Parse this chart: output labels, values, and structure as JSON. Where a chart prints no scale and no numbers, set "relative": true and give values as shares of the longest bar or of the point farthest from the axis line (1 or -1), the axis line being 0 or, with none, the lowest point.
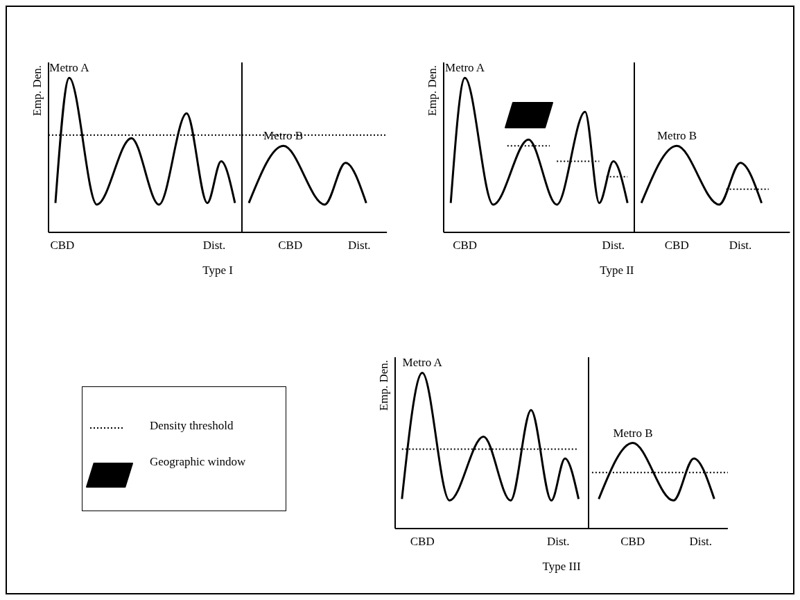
{
  "chart_data": [
    {
      "type": "line",
      "relative": true,
      "ylabel": "Emp. Den.",
      "marker": "none",
      "annotations": [
        "Type I"
      ],
      "categories": [
        null,
        null,
        "CBD",
        null,
        null,
        null,
        null,
        null,
        null,
        null,
        null,
        null,
        null,
        null,
        null,
        null,
        null,
        null,
        null,
        null,
        null,
        null,
        null,
        null,
        "Dist.",
        null,
        null,
        null,
        null,
        null,
        null,
        null,
        null,
        null,
        null,
        "CBD",
        null,
        null,
        null,
        null,
        null,
        null,
        null,
        null,
        null,
        "Dist.",
        null,
        null,
        null,
        null
      ],
      "series": [
        {
          "name": "Metro A",
          "color": "#000000",
          "values": [
            null,
            0.19,
            null,
            1.0,
            null,
            null,
            null,
            0.18,
            null,
            null,
            null,
            null,
            0.61,
            null,
            null,
            null,
            0.18,
            null,
            null,
            null,
            0.77,
            null,
            null,
            0.19,
            null,
            0.46,
            null,
            0.19,
            null,
            null,
            null,
            null,
            null,
            null,
            null,
            null,
            null,
            null,
            null,
            null,
            null,
            null,
            null,
            null,
            null,
            null,
            null,
            null,
            null,
            null
          ]
        },
        {
          "name": "Metro B",
          "color": "#000000",
          "values": [
            null,
            null,
            null,
            null,
            null,
            null,
            null,
            null,
            null,
            null,
            null,
            null,
            null,
            null,
            null,
            null,
            null,
            null,
            null,
            null,
            null,
            null,
            null,
            null,
            null,
            null,
            null,
            null,
            null,
            0.19,
            null,
            null,
            null,
            null,
            0.56,
            null,
            null,
            null,
            null,
            null,
            0.18,
            null,
            null,
            0.45,
            null,
            null,
            0.19,
            null,
            null,
            null
          ]
        }
      ],
      "ref_lines": [
        {
          "axis": "y",
          "value": 0.63,
          "color": "#000000",
          "line_style": "dotted"
        }
      ]
    },
    {
      "type": "line",
      "relative": true,
      "ylabel": "Emp. Den.",
      "marker": "none",
      "annotations": [
        "Type II"
      ],
      "categories": [
        null,
        null,
        null,
        "CBD",
        null,
        null,
        null,
        null,
        null,
        null,
        null,
        null,
        null,
        null,
        null,
        null,
        null,
        null,
        null,
        null,
        null,
        null,
        null,
        null,
        "Dist.",
        null,
        null,
        null,
        null,
        null,
        null,
        null,
        null,
        "CBD",
        null,
        null,
        null,
        null,
        null,
        null,
        null,
        null,
        "Dist.",
        null,
        null,
        null,
        null,
        null,
        null,
        null
      ],
      "series": [
        {
          "name": "Metro A",
          "color": "#000000",
          "values": [
            null,
            0.19,
            null,
            1.0,
            null,
            null,
            null,
            0.18,
            null,
            null,
            null,
            null,
            0.6,
            null,
            null,
            null,
            0.18,
            null,
            null,
            null,
            0.78,
            null,
            0.19,
            null,
            0.46,
            null,
            0.19,
            null,
            null,
            null,
            null,
            null,
            null,
            null,
            null,
            null,
            null,
            null,
            null,
            null,
            null,
            null,
            null,
            null,
            null,
            null,
            null,
            null,
            null,
            null
          ]
        },
        {
          "name": "Metro B",
          "color": "#000000",
          "values": [
            null,
            null,
            null,
            null,
            null,
            null,
            null,
            null,
            null,
            null,
            null,
            null,
            null,
            null,
            null,
            null,
            null,
            null,
            null,
            null,
            null,
            null,
            null,
            null,
            null,
            null,
            null,
            null,
            0.19,
            null,
            null,
            null,
            null,
            0.56,
            null,
            null,
            null,
            null,
            null,
            0.18,
            null,
            null,
            0.45,
            null,
            null,
            0.19,
            null,
            null,
            null,
            null
          ]
        },
        {
          "color": "#000000",
          "line_style": "dotted",
          "values": [
            null,
            null,
            null,
            null,
            null,
            null,
            null,
            null,
            null,
            0.56,
            null,
            null,
            null,
            null,
            null,
            0.56,
            null,
            null,
            null,
            null,
            null,
            null,
            null,
            null,
            null,
            null,
            null,
            null,
            null,
            null,
            null,
            null,
            null,
            null,
            null,
            null,
            null,
            null,
            null,
            null,
            null,
            null,
            null,
            null,
            null,
            null,
            null,
            null,
            null,
            null
          ]
        },
        {
          "color": "#000000",
          "line_style": "dotted",
          "values": [
            null,
            null,
            null,
            null,
            null,
            null,
            null,
            null,
            null,
            null,
            null,
            null,
            null,
            null,
            null,
            null,
            0.46,
            null,
            null,
            null,
            null,
            null,
            0.46,
            null,
            null,
            null,
            null,
            null,
            null,
            null,
            null,
            null,
            null,
            null,
            null,
            null,
            null,
            null,
            null,
            null,
            null,
            null,
            null,
            null,
            null,
            null,
            null,
            null,
            null,
            null
          ]
        },
        {
          "color": "#000000",
          "line_style": "dotted",
          "values": [
            null,
            null,
            null,
            null,
            null,
            null,
            null,
            null,
            null,
            null,
            null,
            null,
            null,
            null,
            null,
            null,
            null,
            null,
            null,
            null,
            null,
            null,
            null,
            0.36,
            null,
            null,
            0.36,
            null,
            null,
            null,
            null,
            null,
            null,
            null,
            null,
            null,
            null,
            null,
            null,
            null,
            null,
            null,
            null,
            null,
            null,
            null,
            null,
            null,
            null,
            null
          ]
        },
        {
          "color": "#000000",
          "line_style": "dotted",
          "values": [
            null,
            null,
            null,
            null,
            null,
            null,
            null,
            null,
            null,
            null,
            null,
            null,
            null,
            null,
            null,
            null,
            null,
            null,
            null,
            null,
            null,
            null,
            null,
            null,
            null,
            null,
            null,
            null,
            null,
            null,
            null,
            null,
            null,
            null,
            null,
            null,
            null,
            null,
            null,
            null,
            0.28,
            null,
            null,
            null,
            null,
            null,
            0.28,
            null,
            null,
            null
          ]
        }
      ]
    },
    {
      "type": "line",
      "relative": true,
      "ylabel": "Emp. Den.",
      "marker": "none",
      "annotations": [
        "Type III"
      ],
      "categories": [
        null,
        null,
        null,
        null,
        "CBD",
        null,
        null,
        null,
        null,
        null,
        null,
        null,
        null,
        null,
        null,
        null,
        null,
        null,
        null,
        null,
        null,
        null,
        null,
        null,
        "Dist.",
        null,
        null,
        null,
        null,
        null,
        null,
        null,
        null,
        null,
        null,
        "CBD",
        null,
        null,
        null,
        null,
        null,
        null,
        null,
        null,
        null,
        "Dist.",
        null,
        null,
        null,
        null
      ],
      "series": [
        {
          "name": "Metro A",
          "color": "#000000",
          "values": [
            null,
            0.19,
            null,
            null,
            1.0,
            null,
            null,
            null,
            0.18,
            null,
            null,
            null,
            null,
            0.59,
            null,
            null,
            null,
            0.18,
            null,
            null,
            0.76,
            null,
            null,
            0.18,
            null,
            0.45,
            null,
            0.19,
            null,
            null,
            null,
            null,
            null,
            null,
            null,
            null,
            null,
            null,
            null,
            null,
            null,
            null,
            null,
            null,
            null,
            null,
            null,
            null,
            null,
            null
          ]
        },
        {
          "name": "Metro B",
          "color": "#000000",
          "values": [
            null,
            null,
            null,
            null,
            null,
            null,
            null,
            null,
            null,
            null,
            null,
            null,
            null,
            null,
            null,
            null,
            null,
            null,
            null,
            null,
            null,
            null,
            null,
            null,
            null,
            null,
            null,
            null,
            null,
            null,
            0.19,
            null,
            null,
            null,
            null,
            0.55,
            null,
            null,
            null,
            null,
            null,
            0.18,
            null,
            null,
            0.45,
            null,
            null,
            0.19,
            null,
            null
          ]
        },
        {
          "color": "#000000",
          "line_style": "dotted",
          "values": [
            null,
            0.51,
            null,
            null,
            null,
            null,
            null,
            null,
            null,
            null,
            null,
            null,
            null,
            null,
            null,
            null,
            null,
            null,
            null,
            null,
            null,
            null,
            null,
            null,
            null,
            null,
            null,
            0.51,
            null,
            null,
            null,
            null,
            null,
            null,
            null,
            null,
            null,
            null,
            null,
            null,
            null,
            null,
            null,
            null,
            null,
            null,
            null,
            null,
            null,
            null
          ]
        },
        {
          "color": "#000000",
          "line_style": "dotted",
          "values": [
            null,
            null,
            null,
            null,
            null,
            null,
            null,
            null,
            null,
            null,
            null,
            null,
            null,
            null,
            null,
            null,
            null,
            null,
            null,
            null,
            null,
            null,
            null,
            null,
            null,
            null,
            null,
            null,
            null,
            0.36,
            null,
            null,
            null,
            null,
            null,
            null,
            null,
            null,
            null,
            null,
            null,
            null,
            null,
            null,
            null,
            null,
            null,
            null,
            null,
            0.36
          ]
        }
      ]
    },
    {
      "type": "other",
      "annotations": [
        "Density threshold",
        "Geographic window"
      ]
    }
  ]
}
